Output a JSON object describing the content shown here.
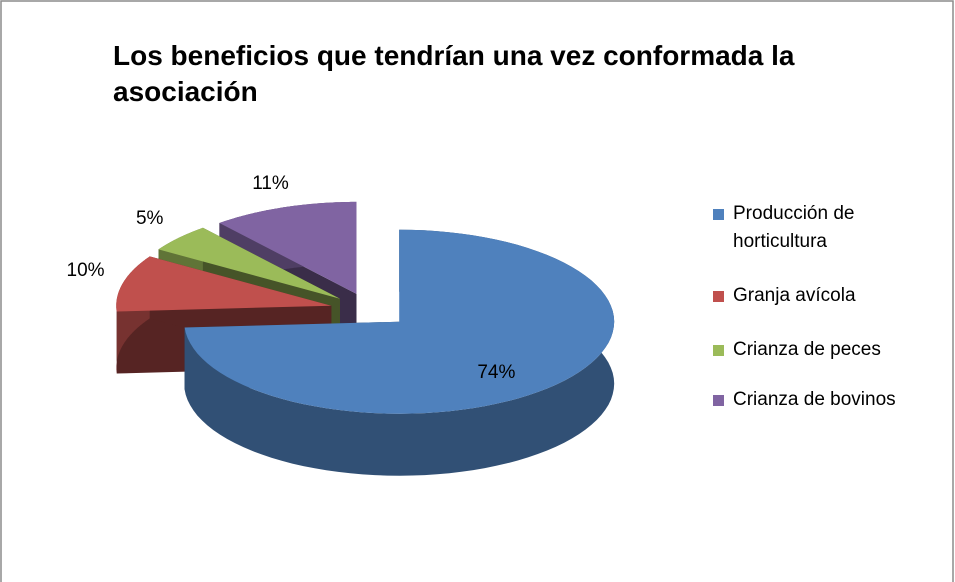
{
  "chart_data": {
    "type": "pie",
    "title": "Los beneficios que tendrían una vez conformada la asociación",
    "categories": [
      "Producción de horticultura",
      "Granja avícola",
      "Crianza de peces",
      "Crianza de bovinos"
    ],
    "values": [
      74,
      10,
      5,
      11
    ],
    "value_labels": [
      "74%",
      "10%",
      "5%",
      "11%"
    ],
    "colors": [
      "#4f81bd",
      "#c0504d",
      "#9bbb59",
      "#8064a2"
    ],
    "legend": "right"
  }
}
